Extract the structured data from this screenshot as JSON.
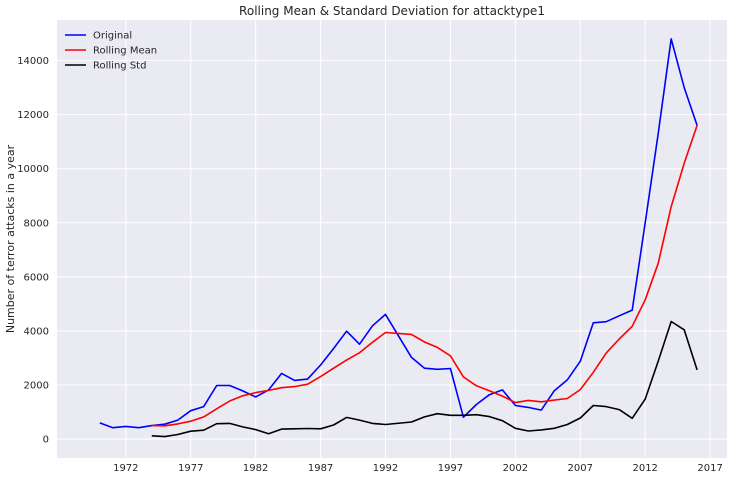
{
  "chart_data": {
    "type": "line",
    "title": "Rolling Mean & Standard Deviation for attacktype1",
    "xlabel": "",
    "ylabel": "Number of terror attacks in a year",
    "xlim": [
      1966.7,
      2018.3
    ],
    "ylim": [
      -700,
      15500
    ],
    "xticks": [
      1972,
      1977,
      1982,
      1987,
      1992,
      1997,
      2002,
      2007,
      2012,
      2017
    ],
    "yticks": [
      0,
      2000,
      4000,
      6000,
      8000,
      10000,
      12000,
      14000
    ],
    "grid": true,
    "legend_position": "top-left",
    "background": "#eaeaf2",
    "x": [
      1970,
      1971,
      1972,
      1973,
      1974,
      1975,
      1976,
      1977,
      1978,
      1979,
      1980,
      1981,
      1982,
      1983,
      1984,
      1985,
      1986,
      1987,
      1988,
      1989,
      1990,
      1991,
      1992,
      1994,
      1995,
      1996,
      1997,
      1998,
      1999,
      2000,
      2001,
      2002,
      2003,
      2004,
      2005,
      2006,
      2007,
      2008,
      2009,
      2010,
      2011,
      2012,
      2013,
      2014,
      2015,
      2016
    ],
    "series": [
      {
        "name": "Original",
        "color": "#0000ff",
        "values": [
          600,
          420,
          470,
          420,
          500,
          550,
          700,
          1050,
          1200,
          1980,
          1980,
          1780,
          1560,
          1820,
          2430,
          2170,
          2220,
          2740,
          3350,
          3990,
          3510,
          4190,
          4610,
          3020,
          2620,
          2580,
          2610,
          810,
          1280,
          1640,
          1820,
          1240,
          1170,
          1070,
          1790,
          2190,
          2880,
          4300,
          4340,
          4560,
          4770,
          8000,
          11300,
          14800,
          13000,
          11600
        ]
      },
      {
        "name": "Rolling Mean",
        "color": "#ff0000",
        "values": [
          null,
          null,
          null,
          null,
          500,
          490,
          560,
          660,
          820,
          1120,
          1410,
          1600,
          1720,
          1800,
          1900,
          1940,
          2030,
          2310,
          2620,
          2920,
          3190,
          3580,
          3940,
          3870,
          3590,
          3390,
          3080,
          2300,
          1970,
          1790,
          1590,
          1350,
          1430,
          1380,
          1440,
          1500,
          1830,
          2470,
          3180,
          3700,
          4170,
          5150,
          6500,
          8600,
          10200,
          11600
        ]
      },
      {
        "name": "Rolling Std",
        "color": "#000000",
        "values": [
          null,
          null,
          null,
          null,
          120,
          90,
          170,
          290,
          330,
          570,
          580,
          450,
          350,
          200,
          370,
          380,
          390,
          380,
          520,
          800,
          700,
          580,
          540,
          630,
          820,
          940,
          880,
          880,
          900,
          830,
          680,
          400,
          300,
          340,
          400,
          540,
          780,
          1240,
          1200,
          1090,
          770,
          1480,
          2880,
          4350,
          4040,
          2560
        ]
      }
    ]
  }
}
